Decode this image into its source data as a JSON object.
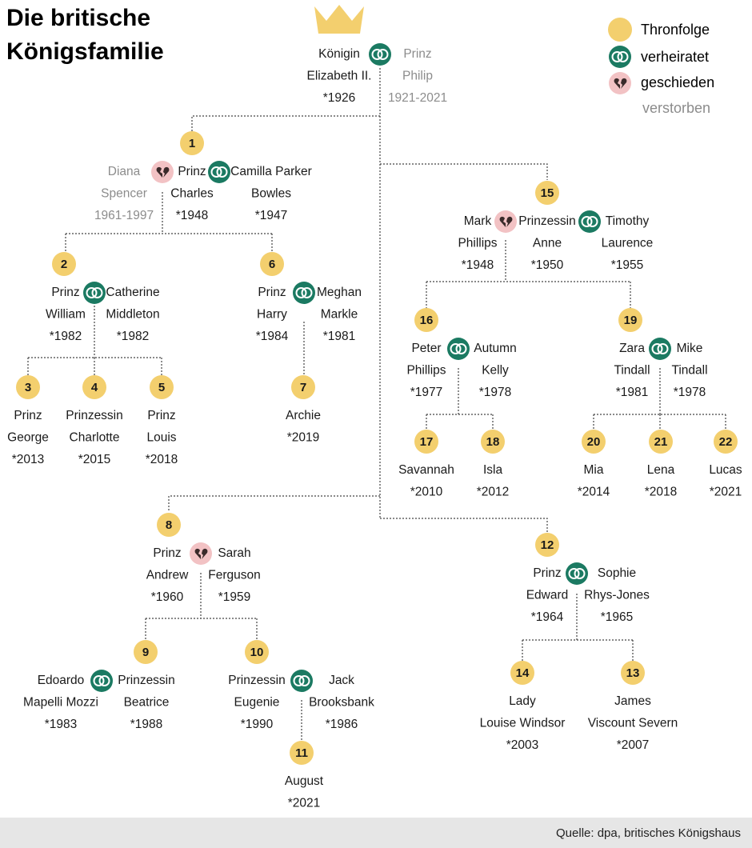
{
  "header": {
    "title": [
      "Die britische",
      "Königsfamilie"
    ]
  },
  "legend": [
    "Thronfolge",
    "verheiratet",
    "geschieden",
    "verstorben"
  ],
  "people": [
    {
      "lines": [
        "Königin",
        "Elizabeth II.",
        "*1926"
      ]
    },
    {
      "lines": [
        "Prinz",
        "Philip",
        "1921-2021"
      ],
      "deceased": true
    },
    {
      "lines": [
        "Diana",
        "Spencer",
        "1961-1997"
      ],
      "deceased": true
    },
    {
      "lines": [
        "Prinz",
        "Charles",
        "*1948"
      ],
      "rank": 1
    },
    {
      "lines": [
        "Camilla Parker",
        "Bowles",
        "*1947"
      ]
    },
    {
      "lines": [
        "Prinz",
        "William",
        "*1982"
      ],
      "rank": 2
    },
    {
      "lines": [
        "Catherine",
        "Middleton",
        "*1982"
      ]
    },
    {
      "lines": [
        "Prinz",
        "George",
        "*2013"
      ],
      "rank": 3
    },
    {
      "lines": [
        "Prinzessin",
        "Charlotte",
        "*2015"
      ],
      "rank": 4
    },
    {
      "lines": [
        "Prinz",
        "Louis",
        "*2018"
      ],
      "rank": 5
    },
    {
      "lines": [
        "Prinz",
        "Harry",
        "*1984"
      ],
      "rank": 6
    },
    {
      "lines": [
        "Meghan",
        "Markle",
        "*1981"
      ]
    },
    {
      "lines": [
        "Archie",
        "*2019"
      ],
      "rank": 7
    },
    {
      "lines": [
        "Mark",
        "Phillips",
        "*1948"
      ]
    },
    {
      "lines": [
        "Prinzessin",
        "Anne",
        "*1950"
      ],
      "rank": 15
    },
    {
      "lines": [
        "Timothy",
        "Laurence",
        "*1955"
      ]
    },
    {
      "lines": [
        "Peter",
        "Phillips",
        "*1977"
      ],
      "rank": 16
    },
    {
      "lines": [
        "Autumn",
        "Kelly",
        "*1978"
      ]
    },
    {
      "lines": [
        "Savannah",
        "*2010"
      ],
      "rank": 17
    },
    {
      "lines": [
        "Isla",
        "*2012"
      ],
      "rank": 18
    },
    {
      "lines": [
        "Zara",
        "Tindall",
        "*1981"
      ],
      "rank": 19
    },
    {
      "lines": [
        "Mike",
        "Tindall",
        "*1978"
      ]
    },
    {
      "lines": [
        "Mia",
        "*2014"
      ],
      "rank": 20
    },
    {
      "lines": [
        "Lena",
        "*2018"
      ],
      "rank": 21
    },
    {
      "lines": [
        "Lucas",
        "*2021"
      ],
      "rank": 22
    },
    {
      "lines": [
        "Prinz",
        "Andrew",
        "*1960"
      ],
      "rank": 8
    },
    {
      "lines": [
        "Sarah",
        "Ferguson",
        "*1959"
      ]
    },
    {
      "lines": [
        "Edoardo",
        "Mapelli Mozzi",
        "*1983"
      ]
    },
    {
      "lines": [
        "Prinzessin",
        "Beatrice",
        "*1988"
      ],
      "rank": 9
    },
    {
      "lines": [
        "Prinzessin",
        "Eugenie",
        "*1990"
      ],
      "rank": 10
    },
    {
      "lines": [
        "Jack",
        "Brooksbank",
        "*1986"
      ]
    },
    {
      "lines": [
        "August",
        "*2021"
      ],
      "rank": 11
    },
    {
      "lines": [
        "Prinz",
        "Edward",
        "*1964"
      ],
      "rank": 12
    },
    {
      "lines": [
        "Sophie",
        "Rhys-Jones",
        "*1965"
      ]
    },
    {
      "lines": [
        "Lady",
        "Louise Windsor",
        "*2003"
      ],
      "rank": 14
    },
    {
      "lines": [
        "James",
        "Viscount Severn",
        "*2007"
      ],
      "rank": 13
    }
  ],
  "footer": {
    "source": "Quelle: dpa, britisches Königshaus"
  }
}
